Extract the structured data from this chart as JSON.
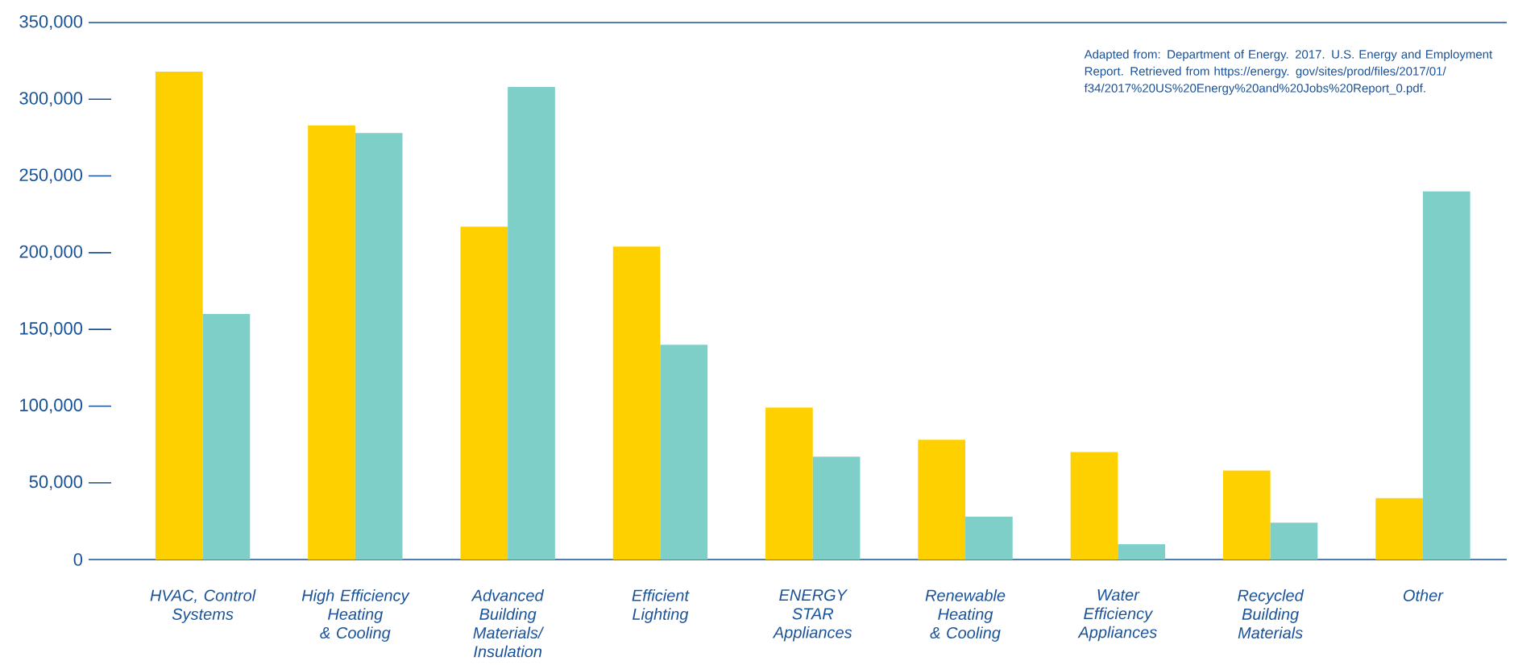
{
  "chart_data": {
    "type": "bar",
    "categories": [
      "HVAC, Control Systems",
      "High Efficiency Heating & Cooling",
      "Advanced Building Materials/ Insulation",
      "Efficient Lighting",
      "ENERGY STAR Appliances",
      "Renewable Heating & Cooling",
      "Water Efficiency Appliances",
      "Recycled Building Materials",
      "Other"
    ],
    "series": [
      {
        "color": "#ffd000",
        "values": [
          318000,
          283000,
          217000,
          204000,
          99000,
          78000,
          70000,
          58000,
          40000
        ]
      },
      {
        "color": "#7dcfc8",
        "values": [
          160000,
          278000,
          308000,
          140000,
          67000,
          28000,
          10000,
          24000,
          240000
        ]
      }
    ],
    "ylim": [
      0,
      350000
    ],
    "yticks": [
      {
        "value": 0,
        "label": "0"
      },
      {
        "value": 50000,
        "label": "50,000"
      },
      {
        "value": 100000,
        "label": "100,000"
      },
      {
        "value": 150000,
        "label": "150,000"
      },
      {
        "value": 200000,
        "label": "200,000"
      },
      {
        "value": 250000,
        "label": "250,000"
      },
      {
        "value": 300000,
        "label": "300,000"
      },
      {
        "value": 350000,
        "label": "350,000"
      }
    ],
    "grid": false,
    "annotations": [
      "Adapted from: Department of Energy. 2017. U.S. Energy and Employment Report. Retrieved from https://energy. gov/sites/prod/files/2017/01/ f34/2017%20US%20Energy%20and%20Jobs%20Report_0.pdf."
    ]
  }
}
